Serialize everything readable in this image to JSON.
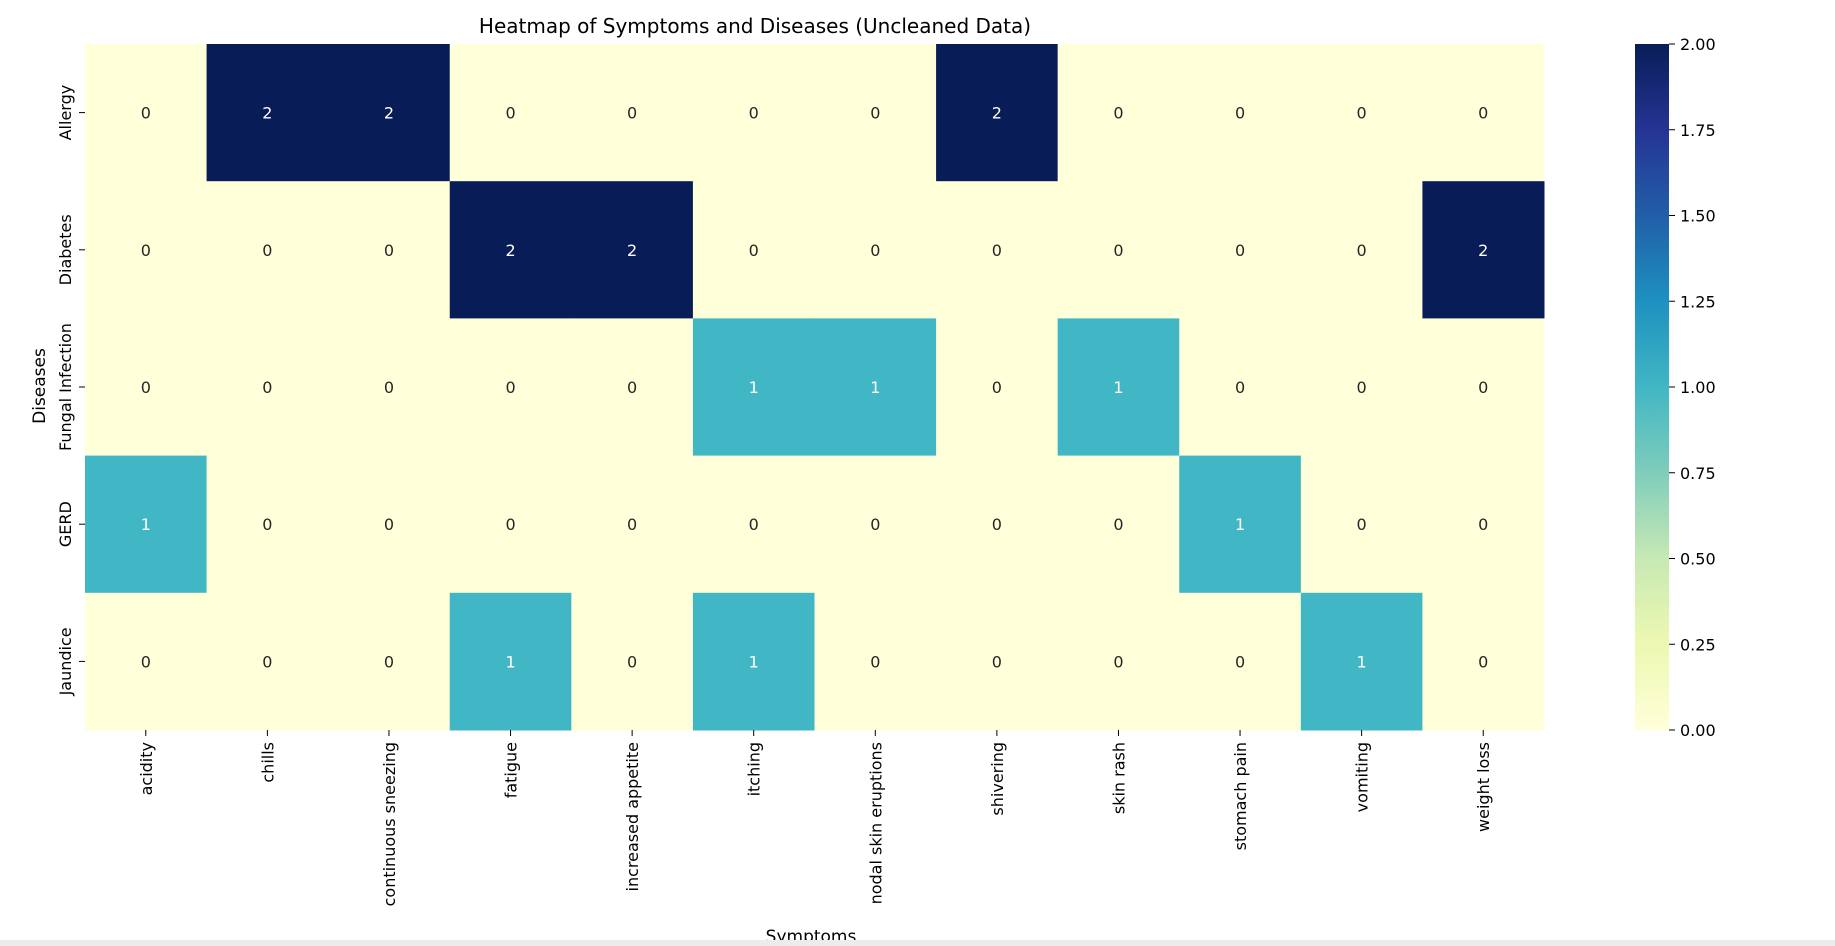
{
  "chart_data": {
    "type": "heatmap",
    "title": "Heatmap of Symptoms and Diseases (Uncleaned Data)",
    "xlabel": "Symptoms",
    "ylabel": "Diseases",
    "x_categories": [
      "acidity",
      "chills",
      "continuous sneezing",
      "fatigue",
      "increased appetite",
      "itching",
      "nodal skin eruptions",
      "shivering",
      "skin rash",
      "stomach pain",
      "vomiting",
      "weight loss"
    ],
    "y_categories": [
      "Allergy",
      "Diabetes",
      "Fungal Infection",
      "GERD",
      "Jaundice"
    ],
    "values": [
      [
        0,
        2,
        2,
        0,
        0,
        0,
        0,
        2,
        0,
        0,
        0,
        0
      ],
      [
        0,
        0,
        0,
        2,
        2,
        0,
        0,
        0,
        0,
        0,
        0,
        2
      ],
      [
        0,
        0,
        0,
        0,
        0,
        1,
        1,
        0,
        1,
        0,
        0,
        0
      ],
      [
        1,
        0,
        0,
        0,
        0,
        0,
        0,
        0,
        0,
        1,
        0,
        0
      ],
      [
        0,
        0,
        0,
        1,
        0,
        1,
        0,
        0,
        0,
        0,
        1,
        0
      ]
    ],
    "colormap": "YlGnBu",
    "vmin": 0,
    "vmax": 2,
    "annotate": true,
    "colorbar_ticks": [
      "0.00",
      "0.25",
      "0.50",
      "0.75",
      "1.00",
      "1.25",
      "1.50",
      "1.75",
      "2.00"
    ],
    "colors": {
      "0": "#ffffd9",
      "1": "#41b6c4",
      "2": "#081d58"
    }
  }
}
